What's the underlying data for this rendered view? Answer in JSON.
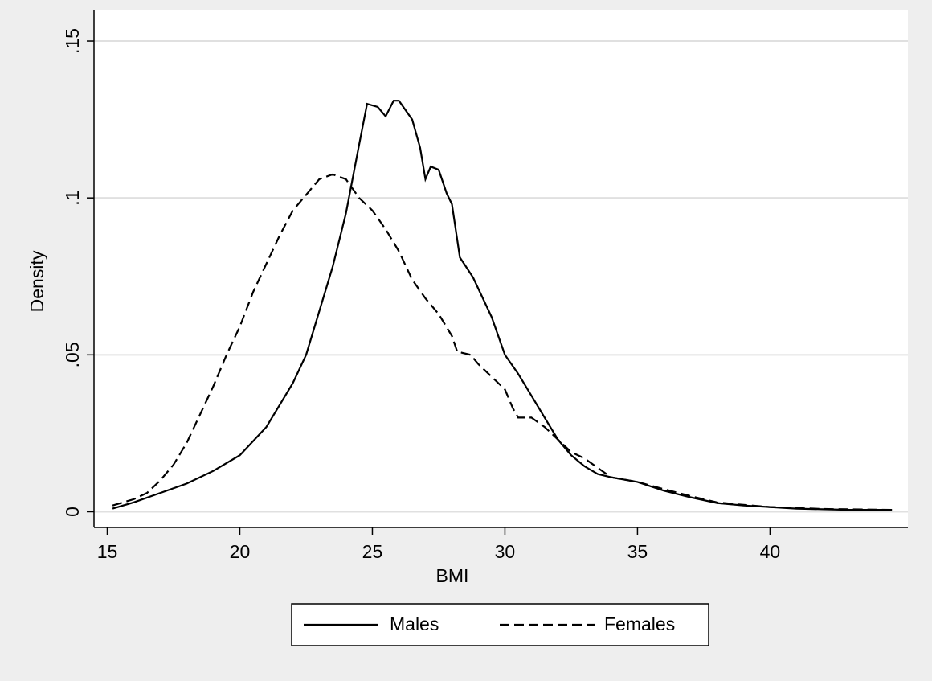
{
  "chart_data": {
    "type": "line",
    "x_label": "BMI",
    "y_label": "Density",
    "xlim": [
      14.5,
      45.2
    ],
    "ylim": [
      -0.005,
      0.16
    ],
    "xticks": [
      15,
      20,
      25,
      30,
      35,
      40
    ],
    "yticks": [
      0,
      {
        "value": 0.05,
        "label": ".05"
      },
      {
        "value": 0.1,
        "label": ".1"
      },
      {
        "value": 0.15,
        "label": ".15"
      }
    ],
    "grid": true,
    "legend": "bottom",
    "series": [
      {
        "name": "Males",
        "color": "#000000",
        "style": "solid",
        "x": [
          15.2,
          16,
          17,
          18,
          19,
          20,
          21,
          22,
          22.5,
          23,
          23.5,
          24,
          24.5,
          24.8,
          25.2,
          25.5,
          25.8,
          26,
          26.5,
          26.8,
          27,
          27.2,
          27.5,
          27.8,
          28,
          28.3,
          28.5,
          28.8,
          29,
          29.5,
          30,
          30.5,
          31,
          31.5,
          32,
          32.5,
          33,
          33.5,
          34,
          35,
          36,
          37,
          38,
          39,
          40,
          41,
          42,
          43,
          44.6
        ],
        "values": [
          0.001,
          0.003,
          0.006,
          0.009,
          0.013,
          0.018,
          0.027,
          0.041,
          0.05,
          0.064,
          0.078,
          0.095,
          0.117,
          0.13,
          0.129,
          0.126,
          0.131,
          0.131,
          0.125,
          0.116,
          0.106,
          0.11,
          0.109,
          0.1015,
          0.098,
          0.081,
          0.0785,
          0.0746,
          0.071,
          0.062,
          0.05,
          0.044,
          0.037,
          0.03,
          0.023,
          0.018,
          0.0145,
          0.012,
          0.011,
          0.0095,
          0.0067,
          0.0046,
          0.0028,
          0.002,
          0.0015,
          0.001,
          0.0008,
          0.0006,
          0.0006
        ]
      },
      {
        "name": "Females",
        "color": "#000000",
        "style": "dashed",
        "x": [
          15.2,
          16,
          16.5,
          17,
          17.5,
          18,
          18.5,
          19,
          19.5,
          20,
          20.5,
          21,
          21.5,
          22,
          22.5,
          23,
          23.5,
          24,
          24.5,
          25,
          25.5,
          26,
          26.5,
          27,
          27.5,
          28,
          28.2,
          28.7,
          29,
          29.5,
          30,
          30.3,
          30.5,
          31,
          31.5,
          32,
          32.5,
          33,
          33.5,
          34,
          35,
          36,
          37,
          38,
          39,
          40,
          42,
          44.6
        ],
        "values": [
          0.002,
          0.004,
          0.006,
          0.01,
          0.015,
          0.022,
          0.031,
          0.04,
          0.05,
          0.059,
          0.07,
          0.079,
          0.088,
          0.096,
          0.101,
          0.106,
          0.1075,
          0.106,
          0.1,
          0.096,
          0.09,
          0.083,
          0.074,
          0.068,
          0.063,
          0.056,
          0.051,
          0.05,
          0.047,
          0.043,
          0.039,
          0.033,
          0.03,
          0.03,
          0.027,
          0.023,
          0.019,
          0.017,
          0.014,
          0.011,
          0.0095,
          0.0072,
          0.005,
          0.003,
          0.0022,
          0.0015,
          0.0009,
          0.0006
        ]
      }
    ]
  }
}
